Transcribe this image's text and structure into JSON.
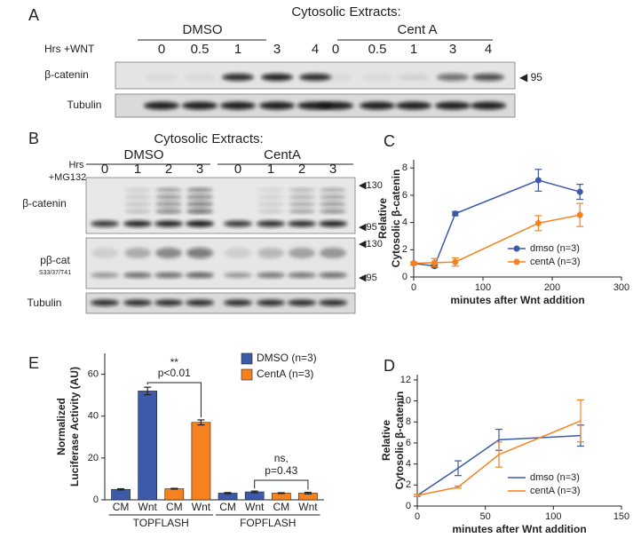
{
  "panelA": {
    "letter": "A",
    "title": "Cytosolic Extracts:",
    "groups": [
      "DMSO",
      "Cent A"
    ],
    "row_label": "Hrs +WNT",
    "times": [
      "0",
      "0.5",
      "1",
      "3",
      "4",
      "0",
      "0.5",
      "1",
      "3",
      "4"
    ],
    "blots": [
      "β-catenin",
      "Tubulin"
    ],
    "marker": "◀ 95"
  },
  "panelB": {
    "letter": "B",
    "title": "Cytosolic Extracts:",
    "groups": [
      "DMSO",
      "CentA"
    ],
    "row_label": [
      "Hrs",
      "+MG132"
    ],
    "times": [
      "0",
      "1",
      "2",
      "3",
      "0",
      "1",
      "2",
      "3"
    ],
    "blots": [
      "β-catenin",
      "pβ-cat",
      "Tubulin"
    ],
    "blot_sub": "S33/37/T41",
    "markers": [
      "◀130",
      "◀95",
      "◀130",
      "◀95"
    ]
  },
  "chart_data": [
    {
      "type": "line",
      "letter": "C",
      "xlabel": "minutes after Wnt addition",
      "ylabel": [
        "Relative",
        "Cytosolic β-catenin"
      ],
      "x": [
        0,
        30,
        60,
        180,
        240
      ],
      "xlim": [
        0,
        300
      ],
      "xticks": [
        0,
        100,
        200,
        300
      ],
      "ylim": [
        0,
        8.6
      ],
      "yticks": [
        0,
        2,
        4,
        6,
        8
      ],
      "markers": true,
      "legend": "lower right",
      "series": [
        {
          "name": "dmso (n=3)",
          "color": "#3d5aa8",
          "values": [
            1,
            0.8,
            4.65,
            7.1,
            6.25
          ],
          "errors": [
            0.1,
            0.1,
            0.15,
            0.8,
            0.55
          ]
        },
        {
          "name": "centA (n=3)",
          "color": "#f5821f",
          "values": [
            1,
            1.05,
            1.1,
            3.95,
            4.55
          ],
          "errors": [
            0.1,
            0.3,
            0.3,
            0.55,
            0.85
          ]
        }
      ]
    },
    {
      "type": "line",
      "letter": "D",
      "xlabel": "minutes after Wnt addition",
      "ylabel": [
        "Relative",
        "Cytosolic β-catenin"
      ],
      "x": [
        0,
        30,
        60,
        120
      ],
      "xlim": [
        0,
        150
      ],
      "xticks": [
        0,
        50,
        100,
        150
      ],
      "ylim": [
        0,
        12.5
      ],
      "yticks": [
        0,
        2,
        4,
        6,
        8,
        10,
        12
      ],
      "markers": false,
      "legend": "lower right",
      "series": [
        {
          "name": "dmso (n=3)",
          "color": "#3d5aa8",
          "values": [
            1,
            3.6,
            6.3,
            6.7
          ],
          "errors": [
            0.1,
            0.7,
            1.0,
            1.0
          ]
        },
        {
          "name": "centA (n=3)",
          "color": "#f5821f",
          "values": [
            1,
            1.8,
            4.9,
            8.1
          ],
          "errors": [
            0.1,
            0.1,
            1.2,
            2.0
          ]
        }
      ]
    },
    {
      "type": "bar",
      "letter": "E",
      "ylabel": [
        "Normalized",
        "Luciferase Activity (AU)"
      ],
      "categories": [
        "CM",
        "Wnt",
        "CM",
        "Wnt",
        "CM",
        "Wnt",
        "CM",
        "Wnt"
      ],
      "groups": [
        "TOPFLASH",
        "FOPFLASH"
      ],
      "ylim": [
        0,
        70
      ],
      "yticks": [
        0,
        20,
        40,
        60
      ],
      "legend": "upper right",
      "series": [
        {
          "name": "DMSO (n=3)",
          "color": "#3d5aa8",
          "values": [
            5,
            52,
            null,
            null,
            3.2,
            3.8,
            null,
            null
          ],
          "errors": [
            0.3,
            1.8,
            null,
            null,
            0.3,
            0.4,
            null,
            null
          ]
        },
        {
          "name": "CentA (n=3)",
          "color": "#f5821f",
          "values": [
            null,
            null,
            5.3,
            37,
            null,
            null,
            3.2,
            3.2
          ],
          "errors": [
            null,
            null,
            0.2,
            1.2,
            null,
            null,
            0.2,
            0.4
          ]
        }
      ],
      "annotations": [
        "**",
        "p<0.01",
        "ns,",
        "p=0.43"
      ]
    }
  ]
}
